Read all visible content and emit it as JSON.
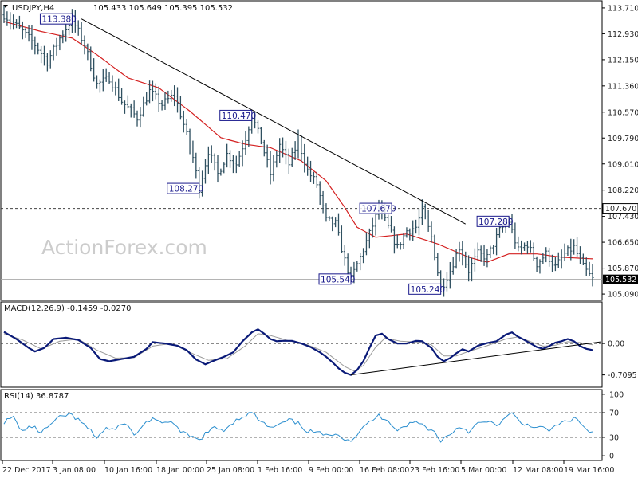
{
  "chart_data": [
    {
      "type": "candlestick",
      "symbol_label": "USDJPY,H4",
      "ohlc_label": "105.433 105.649 105.395 105.532",
      "watermark": "ActionForex.com",
      "ylim": [
        104.9,
        113.9
      ],
      "y_ticks": [
        "113.710",
        "112.930",
        "112.150",
        "111.360",
        "110.570",
        "109.790",
        "109.010",
        "108.220",
        "107.430",
        "106.650",
        "105.870",
        "105.090"
      ],
      "x_ticks": [
        "22 Dec 2017",
        "3 Jan 08:00",
        "10 Jan 16:00",
        "18 Jan 00:00",
        "25 Jan 08:00",
        "1 Feb 16:00",
        "9 Feb 00:00",
        "16 Feb 08:00",
        "23 Feb 16:00",
        "5 Mar 00:00",
        "12 Mar 08:00",
        "19 Mar 16:00"
      ],
      "horizontal_level": "107.670",
      "current_price": "105.532",
      "annotations": [
        {
          "label": "113.380",
          "bar": 22,
          "value": 113.38,
          "side": "left"
        },
        {
          "label": "110.470",
          "bar": 80,
          "value": 110.47,
          "side": "left"
        },
        {
          "label": "108.270",
          "bar": 63,
          "value": 108.27,
          "side": "left"
        },
        {
          "label": "107.670",
          "bar": 120,
          "value": 107.67,
          "side": "center"
        },
        {
          "label": "105.540",
          "bar": 112,
          "value": 105.54,
          "side": "left"
        },
        {
          "label": "105.240",
          "bar": 141,
          "value": 105.24,
          "side": "left"
        },
        {
          "label": "107.280",
          "bar": 163,
          "value": 107.28,
          "side": "left"
        }
      ],
      "trendline": {
        "start": {
          "bar": 25,
          "value": 113.38
        },
        "end": {
          "bar": 149,
          "value": 107.2
        }
      },
      "price_anchors": [
        [
          0,
          113.5
        ],
        [
          6,
          113.0
        ],
        [
          10,
          112.6
        ],
        [
          14,
          112.1
        ],
        [
          18,
          112.8
        ],
        [
          22,
          113.38
        ],
        [
          26,
          112.6
        ],
        [
          30,
          111.4
        ],
        [
          34,
          111.6
        ],
        [
          38,
          110.9
        ],
        [
          43,
          110.4
        ],
        [
          47,
          111.2
        ],
        [
          51,
          110.8
        ],
        [
          55,
          111.1
        ],
        [
          58,
          110.2
        ],
        [
          61,
          109.2
        ],
        [
          63,
          108.27
        ],
        [
          66,
          109.4
        ],
        [
          69,
          108.7
        ],
        [
          72,
          109.3
        ],
        [
          75,
          109.0
        ],
        [
          78,
          109.8
        ],
        [
          80,
          110.47
        ],
        [
          83,
          109.7
        ],
        [
          86,
          108.7
        ],
        [
          89,
          109.6
        ],
        [
          92,
          109.0
        ],
        [
          95,
          109.7
        ],
        [
          98,
          108.8
        ],
        [
          101,
          108.4
        ],
        [
          104,
          107.3
        ],
        [
          107,
          107.2
        ],
        [
          110,
          106.1
        ],
        [
          112,
          105.54
        ],
        [
          115,
          106.2
        ],
        [
          118,
          106.9
        ],
        [
          121,
          107.67
        ],
        [
          124,
          107.1
        ],
        [
          127,
          106.5
        ],
        [
          130,
          107.0
        ],
        [
          133,
          107.1
        ],
        [
          135,
          107.6
        ],
        [
          138,
          106.8
        ],
        [
          141,
          105.24
        ],
        [
          144,
          105.8
        ],
        [
          147,
          106.5
        ],
        [
          150,
          105.8
        ],
        [
          153,
          106.3
        ],
        [
          156,
          106.2
        ],
        [
          160,
          107.0
        ],
        [
          163,
          107.28
        ],
        [
          166,
          106.4
        ],
        [
          169,
          106.6
        ],
        [
          172,
          106.0
        ],
        [
          175,
          106.3
        ],
        [
          178,
          105.9
        ],
        [
          181,
          106.3
        ],
        [
          184,
          106.5
        ],
        [
          187,
          105.9
        ],
        [
          190,
          105.532
        ]
      ],
      "ma_anchors": [
        [
          0,
          113.3
        ],
        [
          12,
          113.0
        ],
        [
          22,
          112.8
        ],
        [
          30,
          112.3
        ],
        [
          40,
          111.6
        ],
        [
          50,
          111.3
        ],
        [
          60,
          110.6
        ],
        [
          70,
          109.8
        ],
        [
          78,
          109.6
        ],
        [
          86,
          109.5
        ],
        [
          96,
          109.1
        ],
        [
          104,
          108.5
        ],
        [
          110,
          107.7
        ],
        [
          114,
          107.1
        ],
        [
          120,
          106.8
        ],
        [
          130,
          106.9
        ],
        [
          140,
          106.6
        ],
        [
          150,
          106.2
        ],
        [
          156,
          106.05
        ],
        [
          163,
          106.3
        ],
        [
          172,
          106.3
        ],
        [
          180,
          106.2
        ],
        [
          190,
          106.15
        ]
      ]
    },
    {
      "type": "line",
      "title": "MACD(12,26,9) -0.1459 -0.0270",
      "ylim": [
        -0.95,
        0.9
      ],
      "y_ticks": [
        "0.00",
        "-0.7095"
      ],
      "zero_level": 0,
      "trendline": {
        "start": {
          "bar": 112,
          "value": -0.71
        },
        "end": {
          "bar": 190,
          "value": 0.0
        }
      },
      "series": [
        {
          "anchors": [
            [
              0,
              0.26
            ],
            [
              4,
              0.1
            ],
            [
              8,
              -0.1
            ],
            [
              10,
              -0.18
            ],
            [
              13,
              -0.1
            ],
            [
              16,
              0.1
            ],
            [
              20,
              0.13
            ],
            [
              24,
              0.08
            ],
            [
              28,
              -0.1
            ],
            [
              31,
              -0.35
            ],
            [
              34,
              -0.4
            ],
            [
              38,
              -0.35
            ],
            [
              42,
              -0.3
            ],
            [
              46,
              -0.12
            ],
            [
              48,
              0.03
            ],
            [
              52,
              0.0
            ],
            [
              56,
              -0.05
            ],
            [
              59,
              -0.15
            ],
            [
              62,
              -0.36
            ],
            [
              65,
              -0.47
            ],
            [
              68,
              -0.38
            ],
            [
              71,
              -0.3
            ],
            [
              74,
              -0.2
            ],
            [
              77,
              0.05
            ],
            [
              80,
              0.25
            ],
            [
              82,
              0.32
            ],
            [
              84,
              0.22
            ],
            [
              86,
              0.1
            ],
            [
              88,
              0.05
            ],
            [
              90,
              0.06
            ],
            [
              93,
              0.06
            ],
            [
              96,
              0.0
            ],
            [
              99,
              -0.08
            ],
            [
              102,
              -0.2
            ],
            [
              104,
              -0.3
            ],
            [
              106,
              -0.42
            ],
            [
              108,
              -0.56
            ],
            [
              110,
              -0.66
            ],
            [
              112,
              -0.71
            ],
            [
              114,
              -0.6
            ],
            [
              116,
              -0.4
            ],
            [
              118,
              -0.1
            ],
            [
              120,
              0.18
            ],
            [
              122,
              0.22
            ],
            [
              124,
              0.1
            ],
            [
              127,
              0.0
            ],
            [
              130,
              0.0
            ],
            [
              133,
              0.06
            ],
            [
              135,
              0.05
            ],
            [
              138,
              -0.1
            ],
            [
              140,
              -0.3
            ],
            [
              142,
              -0.4
            ],
            [
              144,
              -0.33
            ],
            [
              146,
              -0.22
            ],
            [
              148,
              -0.13
            ],
            [
              150,
              -0.18
            ],
            [
              153,
              -0.05
            ],
            [
              156,
              0.01
            ],
            [
              159,
              0.05
            ],
            [
              162,
              0.2
            ],
            [
              164,
              0.25
            ],
            [
              166,
              0.15
            ],
            [
              168,
              0.08
            ],
            [
              170,
              0.0
            ],
            [
              172,
              -0.08
            ],
            [
              174,
              -0.12
            ],
            [
              176,
              -0.06
            ],
            [
              178,
              0.02
            ],
            [
              180,
              0.05
            ],
            [
              182,
              0.1
            ],
            [
              184,
              0.05
            ],
            [
              186,
              -0.06
            ],
            [
              188,
              -0.12
            ],
            [
              190,
              -0.15
            ]
          ]
        },
        {
          "anchors": [
            [
              0,
              0.22
            ],
            [
              6,
              0.08
            ],
            [
              12,
              -0.12
            ],
            [
              18,
              0.05
            ],
            [
              24,
              0.1
            ],
            [
              30,
              -0.15
            ],
            [
              36,
              -0.33
            ],
            [
              42,
              -0.32
            ],
            [
              48,
              -0.06
            ],
            [
              54,
              0.0
            ],
            [
              60,
              -0.2
            ],
            [
              66,
              -0.38
            ],
            [
              72,
              -0.34
            ],
            [
              78,
              -0.05
            ],
            [
              82,
              0.22
            ],
            [
              86,
              0.18
            ],
            [
              92,
              0.06
            ],
            [
              98,
              -0.03
            ],
            [
              104,
              -0.2
            ],
            [
              110,
              -0.52
            ],
            [
              113,
              -0.62
            ],
            [
              116,
              -0.5
            ],
            [
              120,
              -0.08
            ],
            [
              123,
              0.12
            ],
            [
              128,
              0.05
            ],
            [
              134,
              0.03
            ],
            [
              138,
              -0.03
            ],
            [
              142,
              -0.28
            ],
            [
              146,
              -0.28
            ],
            [
              150,
              -0.18
            ],
            [
              156,
              -0.05
            ],
            [
              162,
              0.1
            ],
            [
              166,
              0.15
            ],
            [
              170,
              0.04
            ],
            [
              174,
              -0.06
            ],
            [
              178,
              -0.04
            ],
            [
              182,
              0.04
            ],
            [
              186,
              0.02
            ],
            [
              190,
              -0.03
            ]
          ]
        }
      ]
    },
    {
      "type": "line",
      "title": "RSI(14) 36.8787",
      "ylim": [
        -5,
        105
      ],
      "y_ticks": [
        "100",
        "70",
        "30",
        "0"
      ],
      "levels": [
        70,
        30
      ],
      "series": [
        {
          "anchors": [
            [
              0,
              55
            ],
            [
              3,
              62
            ],
            [
              6,
              40
            ],
            [
              9,
              48
            ],
            [
              12,
              38
            ],
            [
              15,
              50
            ],
            [
              18,
              62
            ],
            [
              21,
              68
            ],
            [
              24,
              58
            ],
            [
              27,
              45
            ],
            [
              30,
              30
            ],
            [
              33,
              45
            ],
            [
              36,
              42
            ],
            [
              39,
              55
            ],
            [
              42,
              33
            ],
            [
              45,
              50
            ],
            [
              48,
              62
            ],
            [
              51,
              50
            ],
            [
              54,
              58
            ],
            [
              57,
              38
            ],
            [
              60,
              32
            ],
            [
              63,
              25
            ],
            [
              65,
              36
            ],
            [
              68,
              45
            ],
            [
              71,
              42
            ],
            [
              74,
              55
            ],
            [
              77,
              64
            ],
            [
              80,
              70
            ],
            [
              83,
              55
            ],
            [
              86,
              45
            ],
            [
              89,
              50
            ],
            [
              92,
              58
            ],
            [
              95,
              52
            ],
            [
              98,
              40
            ],
            [
              101,
              38
            ],
            [
              104,
              32
            ],
            [
              107,
              38
            ],
            [
              110,
              28
            ],
            [
              112,
              25
            ],
            [
              115,
              40
            ],
            [
              118,
              55
            ],
            [
              121,
              65
            ],
            [
              124,
              58
            ],
            [
              127,
              42
            ],
            [
              130,
              50
            ],
            [
              133,
              55
            ],
            [
              136,
              48
            ],
            [
              139,
              38
            ],
            [
              141,
              25
            ],
            [
              144,
              35
            ],
            [
              147,
              48
            ],
            [
              150,
              40
            ],
            [
              153,
              52
            ],
            [
              156,
              55
            ],
            [
              159,
              50
            ],
            [
              162,
              62
            ],
            [
              164,
              68
            ],
            [
              167,
              52
            ],
            [
              170,
              50
            ],
            [
              173,
              45
            ],
            [
              176,
              42
            ],
            [
              179,
              50
            ],
            [
              182,
              58
            ],
            [
              185,
              60
            ],
            [
              188,
              42
            ],
            [
              190,
              36.9
            ]
          ]
        }
      ]
    }
  ]
}
